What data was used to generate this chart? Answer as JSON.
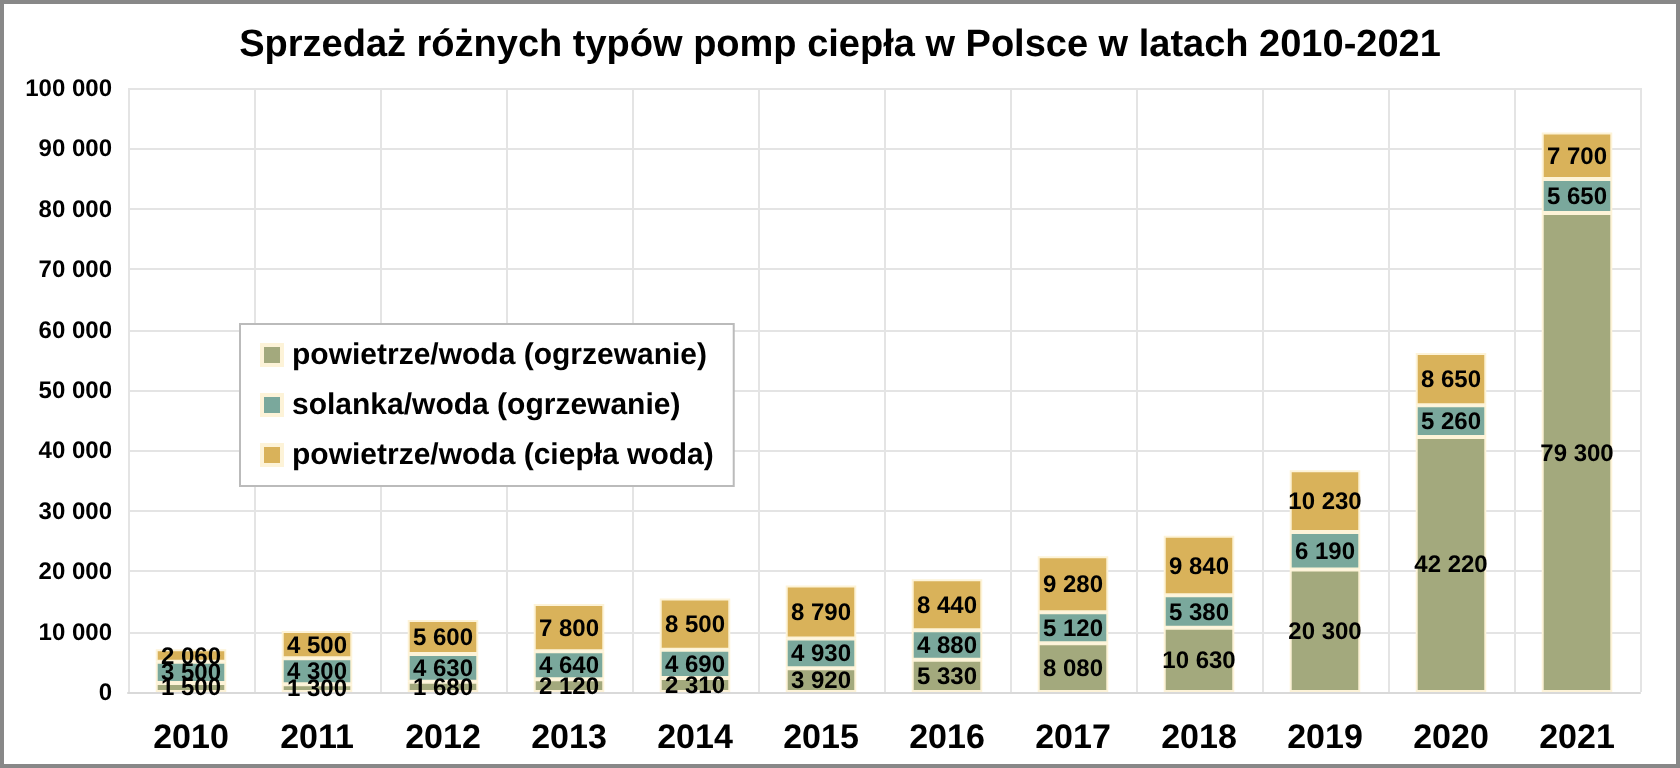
{
  "chart_data": {
    "type": "bar",
    "title": "Sprzedaż różnych typów pomp ciepła w Polsce w latach 2010-2021",
    "categories": [
      "2010",
      "2011",
      "2012",
      "2013",
      "2014",
      "2015",
      "2016",
      "2017",
      "2018",
      "2019",
      "2020",
      "2021"
    ],
    "stacked": true,
    "series": [
      {
        "name": "powietrze/woda (ogrzewanie)",
        "color": "#a3a97d",
        "values": [
          1500,
          1300,
          1680,
          2120,
          2310,
          3920,
          5330,
          8080,
          10630,
          20300,
          42220,
          79300
        ],
        "value_labels": [
          "1 500",
          "1 300",
          "1 680",
          "2 120",
          "2 310",
          "3 920",
          "5 330",
          "8 080",
          "10 630",
          "20 300",
          "42 220",
          "79 300"
        ]
      },
      {
        "name": "solanka/woda (ogrzewanie)",
        "color": "#7aa89c",
        "values": [
          3500,
          4300,
          4630,
          4640,
          4690,
          4930,
          4880,
          5120,
          5380,
          6190,
          5260,
          5650
        ],
        "value_labels": [
          "3 500",
          "4 300",
          "4 630",
          "4 640",
          "4 690",
          "4 930",
          "4 880",
          "5 120",
          "5 380",
          "6 190",
          "5 260",
          "5 650"
        ]
      },
      {
        "name": "powietrze/woda (ciepła woda)",
        "color": "#d9b25a",
        "values": [
          2060,
          4500,
          5600,
          7800,
          8500,
          8790,
          8440,
          9280,
          9840,
          10230,
          8650,
          7700
        ],
        "value_labels": [
          "2 060",
          "4 500",
          "5 600",
          "7 800",
          "8 500",
          "8 790",
          "8 440",
          "9 280",
          "9 840",
          "10 230",
          "8 650",
          "7 700"
        ]
      }
    ],
    "ylim": [
      0,
      100000
    ],
    "yticks": [
      0,
      {
        "value": 10000,
        "label": "10 000"
      },
      {
        "value": 20000,
        "label": "20 000"
      },
      {
        "value": 30000,
        "label": "30 000"
      },
      {
        "value": 40000,
        "label": "40 000"
      },
      {
        "value": 50000,
        "label": "50 000"
      },
      {
        "value": 60000,
        "label": "60 000"
      },
      {
        "value": 70000,
        "label": "70 000"
      },
      {
        "value": 80000,
        "label": "80 000"
      },
      {
        "value": 90000,
        "label": "90 000"
      },
      {
        "value": 100000,
        "label": "100 000"
      }
    ],
    "grid": true,
    "legend": "left"
  }
}
